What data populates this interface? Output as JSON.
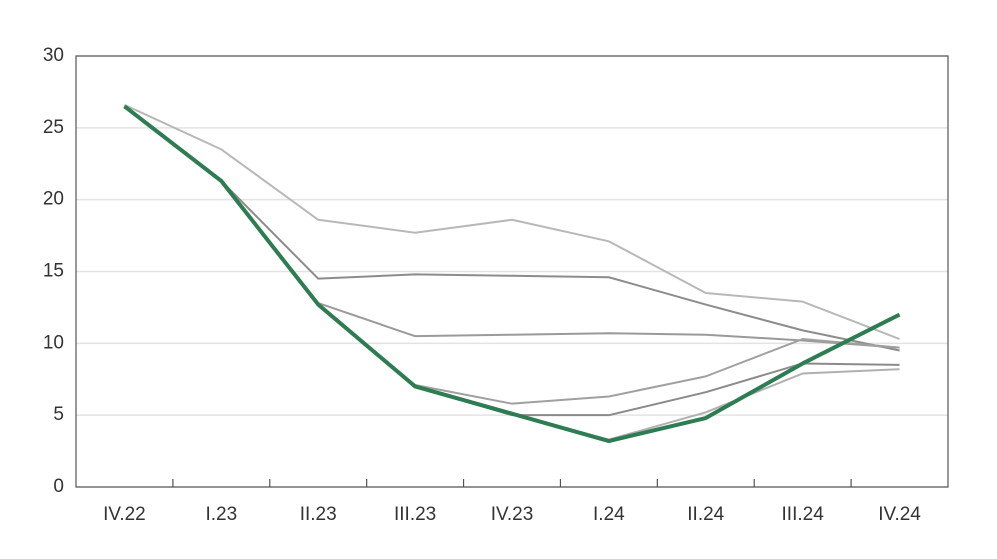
{
  "chart_data": {
    "type": "line",
    "categories": [
      "IV.22",
      "I.23",
      "II.23",
      "III.23",
      "IV.23",
      "I.24",
      "II.24",
      "III.24",
      "IV.24"
    ],
    "series": [
      {
        "color": "#b8b8b8",
        "values": [
          26.6,
          23.5,
          18.6,
          17.7,
          18.6,
          17.1,
          13.5,
          12.9,
          10.3
        ]
      },
      {
        "color": "#8c8c8c",
        "values": [
          26.5,
          21.3,
          14.5,
          14.8,
          14.7,
          14.6,
          12.7,
          10.9,
          9.5
        ]
      },
      {
        "color": "#9a9a9a",
        "values": [
          26.5,
          21.3,
          12.8,
          10.5,
          10.6,
          10.7,
          10.6,
          10.2,
          9.7
        ]
      },
      {
        "color": "#a0a0a0",
        "values": [
          26.5,
          21.3,
          12.7,
          7.1,
          5.8,
          6.3,
          7.7,
          10.3,
          9.7
        ]
      },
      {
        "color": "#8a8a8a",
        "values": [
          26.5,
          21.3,
          12.7,
          7.0,
          5.0,
          5.0,
          6.6,
          8.6,
          8.5
        ]
      },
      {
        "color": "#b0b0b0",
        "values": [
          26.5,
          21.3,
          12.7,
          7.0,
          5.1,
          3.3,
          5.2,
          7.9,
          8.2
        ]
      },
      {
        "color": "#2e7d52",
        "values": [
          26.5,
          21.3,
          12.7,
          7.0,
          5.1,
          3.2,
          4.8,
          8.6,
          12.0
        ]
      }
    ],
    "ylim": [
      0,
      30
    ],
    "yticks": [
      0,
      5,
      10,
      15,
      20,
      25,
      30
    ],
    "grid": true
  }
}
